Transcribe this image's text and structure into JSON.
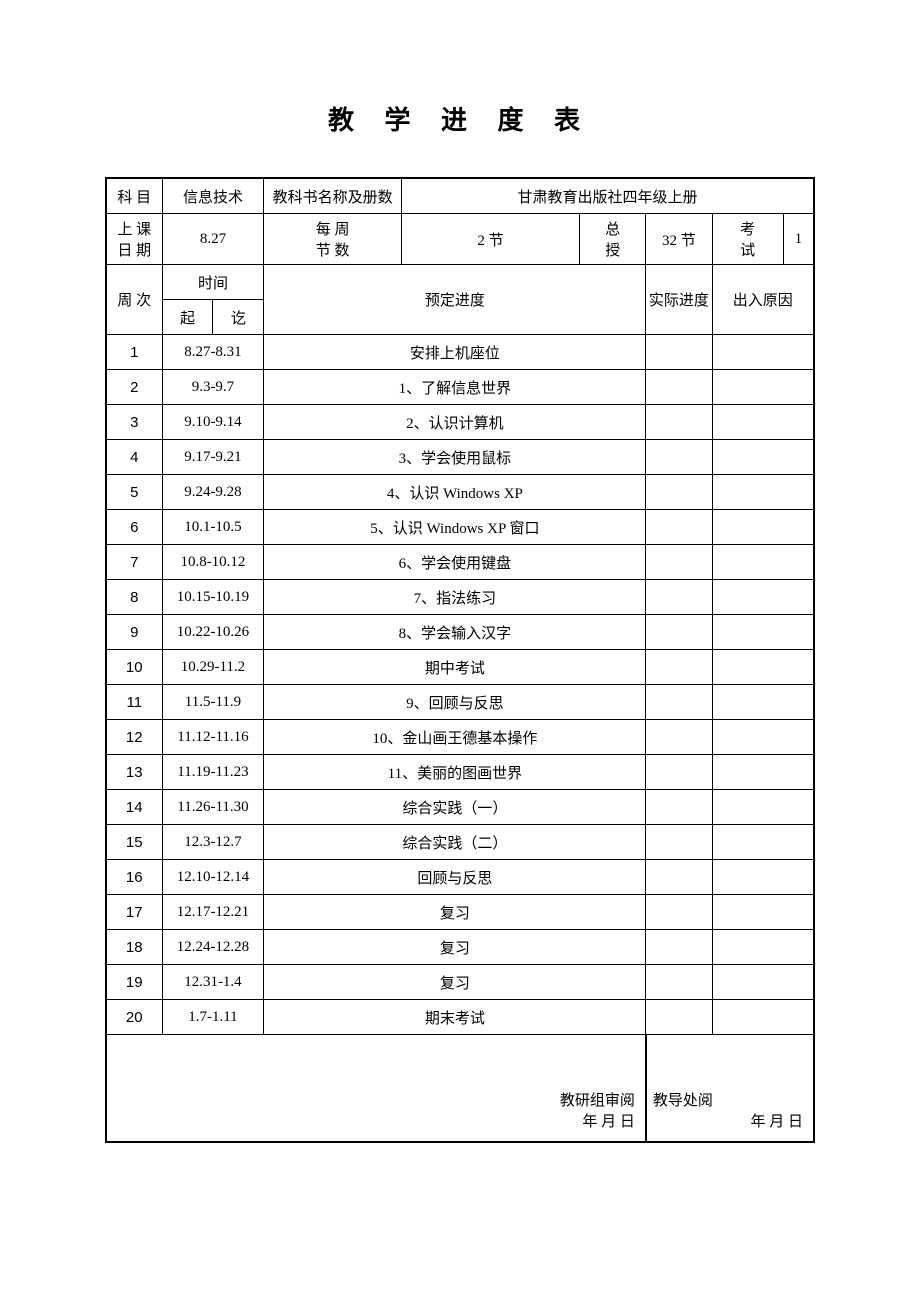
{
  "title": "教 学 进 度 表",
  "header": {
    "subject_label": "科 目",
    "subject_value": "信息技术",
    "textbook_label": "教科书名称及册数",
    "textbook_value": "甘肃教育出版社四年级上册",
    "start_date_label_1": "上 课",
    "start_date_label_2": "日 期",
    "start_date_value": "8.27",
    "per_week_label_1": "每 周",
    "per_week_label_2": "节 数",
    "per_week_value": "2 节",
    "total_label_1": "总",
    "total_label_2": "授",
    "total_value": "32 节",
    "exam_label_1": "考",
    "exam_label_2": "试",
    "exam_value": "1"
  },
  "columns": {
    "week": "周 次",
    "time": "时间",
    "time_start": "起",
    "time_end": "讫",
    "planned": "预定进度",
    "actual": "实际进度",
    "reason": "出入原因"
  },
  "rows": [
    {
      "n": "1",
      "t": "8.27-8.31",
      "p": "安排上机座位"
    },
    {
      "n": "2",
      "t": "9.3-9.7",
      "p": "1、了解信息世界"
    },
    {
      "n": "3",
      "t": "9.10-9.14",
      "p": "2、认识计算机"
    },
    {
      "n": "4",
      "t": "9.17-9.21",
      "p": "3、学会使用鼠标"
    },
    {
      "n": "5",
      "t": "9.24-9.28",
      "p": "4、认识 Windows  XP"
    },
    {
      "n": "6",
      "t": "10.1-10.5",
      "p": "5、认识 Windows  XP 窗口"
    },
    {
      "n": "7",
      "t": "10.8-10.12",
      "p": "6、学会使用键盘"
    },
    {
      "n": "8",
      "t": "10.15-10.19",
      "p": "7、指法练习"
    },
    {
      "n": "9",
      "t": "10.22-10.26",
      "p": "8、学会输入汉字"
    },
    {
      "n": "10",
      "t": "10.29-11.2",
      "p": "期中考试"
    },
    {
      "n": "11",
      "t": "11.5-11.9",
      "p": "9、回顾与反思"
    },
    {
      "n": "12",
      "t": "11.12-11.16",
      "p": "10、金山画王德基本操作"
    },
    {
      "n": "13",
      "t": "11.19-11.23",
      "p": "11、美丽的图画世界"
    },
    {
      "n": "14",
      "t": "11.26-11.30",
      "p": "综合实践（一）"
    },
    {
      "n": "15",
      "t": "12.3-12.7",
      "p": "综合实践（二）"
    },
    {
      "n": "16",
      "t": "12.10-12.14",
      "p": "回顾与反思"
    },
    {
      "n": "17",
      "t": "12.17-12.21",
      "p": "复习"
    },
    {
      "n": "18",
      "t": "12.24-12.28",
      "p": "复习"
    },
    {
      "n": "19",
      "t": "12.31-1.4",
      "p": "复习"
    },
    {
      "n": "20",
      "t": "1.7-1.11",
      "p": "期末考试"
    }
  ],
  "footer": {
    "left_blank": "",
    "group_review": "教研组审阅",
    "group_date": "年  月  日",
    "office_review": "教导处阅",
    "office_date": "年  月  日"
  }
}
